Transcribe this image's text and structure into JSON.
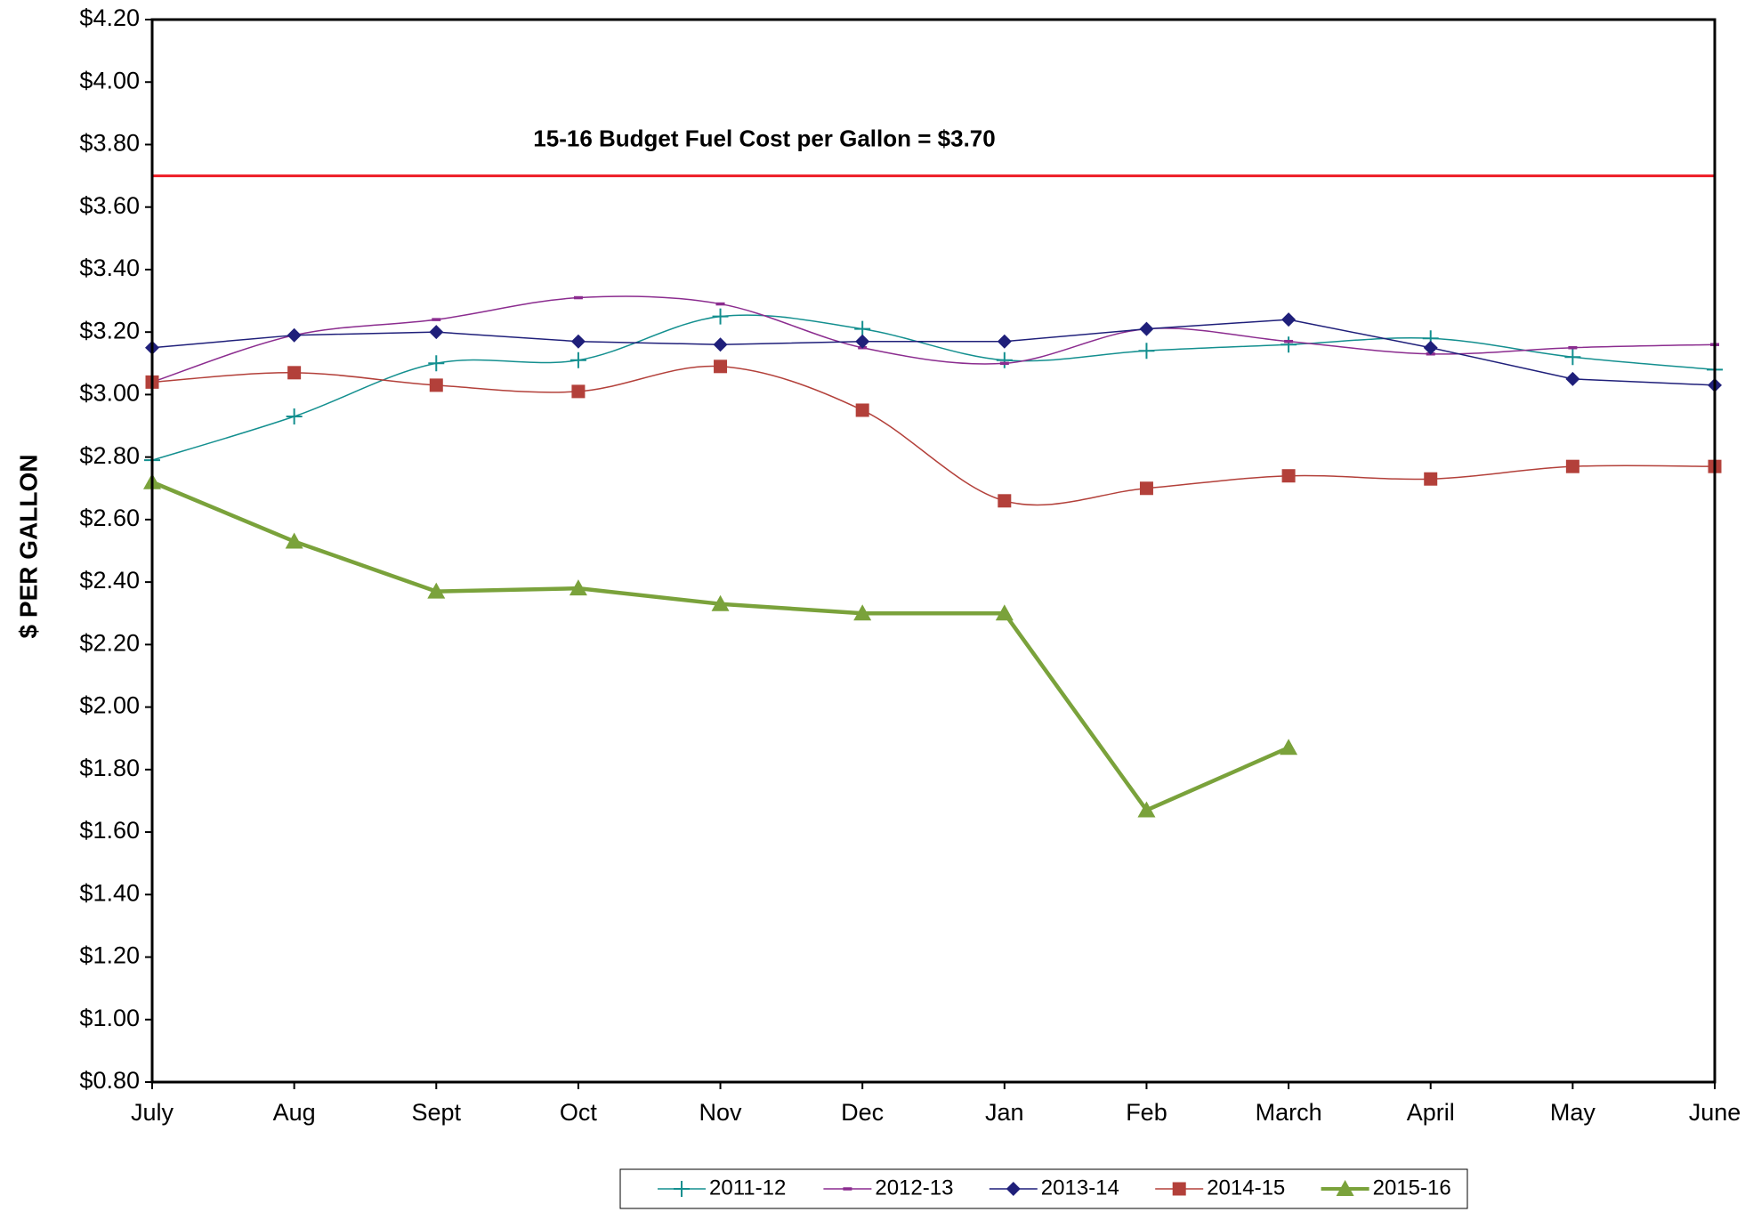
{
  "chart_data": {
    "type": "line",
    "ylabel": "$ PER GALLON",
    "categories": [
      "July",
      "Aug",
      "Sept",
      "Oct",
      "Nov",
      "Dec",
      "Jan",
      "Feb",
      "March",
      "April",
      "May",
      "June"
    ],
    "series": [
      {
        "name": "2011-12",
        "color": "#138f8f",
        "marker": "plus",
        "smooth": true,
        "width": 1.5,
        "values": [
          2.79,
          2.93,
          3.1,
          3.11,
          3.25,
          3.21,
          3.11,
          3.14,
          3.16,
          3.18,
          3.12,
          3.08
        ]
      },
      {
        "name": "2012-13",
        "color": "#8b2c8f",
        "marker": "dash",
        "smooth": true,
        "width": 1.5,
        "values": [
          3.04,
          3.19,
          3.24,
          3.31,
          3.29,
          3.15,
          3.1,
          3.21,
          3.17,
          3.13,
          3.15,
          3.16
        ]
      },
      {
        "name": "2013-14",
        "color": "#1f1f7a",
        "marker": "diamond",
        "smooth": false,
        "width": 1.5,
        "values": [
          3.15,
          3.19,
          3.2,
          3.17,
          3.16,
          3.17,
          3.17,
          3.21,
          3.24,
          3.15,
          3.05,
          3.03
        ]
      },
      {
        "name": "2014-15",
        "color": "#b3403a",
        "marker": "square",
        "smooth": true,
        "width": 1.5,
        "values": [
          3.04,
          3.07,
          3.03,
          3.01,
          3.09,
          2.95,
          2.66,
          2.7,
          2.74,
          2.73,
          2.77,
          2.77
        ]
      },
      {
        "name": "2015-16",
        "color": "#7aa23b",
        "marker": "triangle",
        "smooth": false,
        "width": 4.5,
        "values": [
          2.72,
          2.53,
          2.37,
          2.38,
          2.33,
          2.3,
          2.3,
          1.67,
          1.87,
          null,
          null,
          null
        ]
      }
    ],
    "reference_line": {
      "value": 3.7,
      "label": "15-16 Budget Fuel Cost per Gallon = $3.70",
      "color": "#ee1c25"
    },
    "ylim": [
      0.8,
      4.2
    ],
    "yticks": [
      {
        "value": 0.8,
        "label": "$0.80"
      },
      {
        "value": 1.0,
        "label": "$1.00"
      },
      {
        "value": 1.2,
        "label": "$1.20"
      },
      {
        "value": 1.4,
        "label": "$1.40"
      },
      {
        "value": 1.6,
        "label": "$1.60"
      },
      {
        "value": 1.8,
        "label": "$1.80"
      },
      {
        "value": 2.0,
        "label": "$2.00"
      },
      {
        "value": 2.2,
        "label": "$2.20"
      },
      {
        "value": 2.4,
        "label": "$2.40"
      },
      {
        "value": 2.6,
        "label": "$2.60"
      },
      {
        "value": 2.8,
        "label": "$2.80"
      },
      {
        "value": 3.0,
        "label": "$3.00"
      },
      {
        "value": 3.2,
        "label": "$3.20"
      },
      {
        "value": 3.4,
        "label": "$3.40"
      },
      {
        "value": 3.6,
        "label": "$3.60"
      },
      {
        "value": 3.8,
        "label": "$3.80"
      },
      {
        "value": 4.0,
        "label": "$4.00"
      },
      {
        "value": 4.2,
        "label": "$4.20"
      }
    ],
    "grid": false,
    "legend": "bottom"
  }
}
